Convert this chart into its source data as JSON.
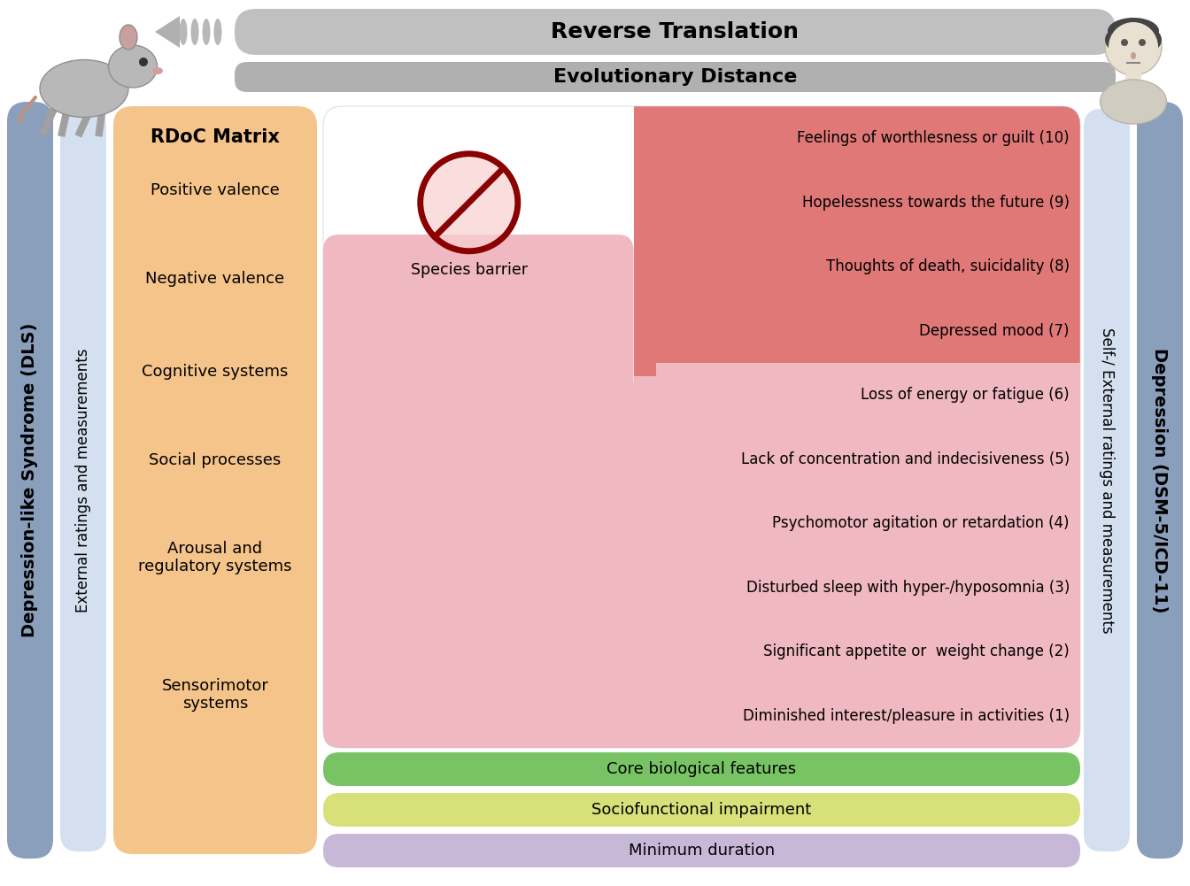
{
  "reverse_translation_text": "Reverse Translation",
  "evolutionary_distance_text": "Evolutionary Distance",
  "rdoc_label": "RDoC Matrix",
  "rdoc_items": [
    "Positive valence",
    "Negative valence",
    "Cognitive systems",
    "Social processes",
    "Arousal and\nregulatory systems",
    "Sensorimotor\nsystems"
  ],
  "symptoms": [
    "Feelings of worthlesness or guilt (10)",
    "Hopelessness towards the future (9)",
    "Thoughts of death, suicidality (8)",
    "Depressed mood (7)",
    "Loss of energy or fatigue (6)",
    "Lack of concentration and indecisiveness (5)",
    "Psychomotor agitation or retardation (4)",
    "Disturbed sleep with hyper-/hyposomnia (3)",
    "Significant appetite or  weight change (2)",
    "Diminished interest/pleasure in activities (1)"
  ],
  "bottom_bars": [
    {
      "label": "Core biological features",
      "color": "#78c465"
    },
    {
      "label": "Sociofunctional impairment",
      "color": "#d8e07a"
    },
    {
      "label": "Minimum duration",
      "color": "#c8b8d8"
    }
  ],
  "left_sidebar_color": "#8a9fbc",
  "left_sidebar_text": "Depression-like Syndrome (DLS)",
  "left_inner_color": "#d4e0f0",
  "left_inner_text": "External ratings and measurements",
  "rdoc_bg": "#f5c48a",
  "right_top_color": "#e07878",
  "right_bottom_color": "#f0b8c0",
  "right_sidebar_color": "#8a9fbc",
  "right_sidebar_text": "Depression (DSM-5/ICD-11)",
  "right_inner_color": "#d4e0f0",
  "right_inner_text": "Self-/ External ratings and measurements",
  "species_barrier_text": "Species barrier",
  "gray_bar_color": "#c0c0c0",
  "gray_bar2_color": "#b0b0b0"
}
